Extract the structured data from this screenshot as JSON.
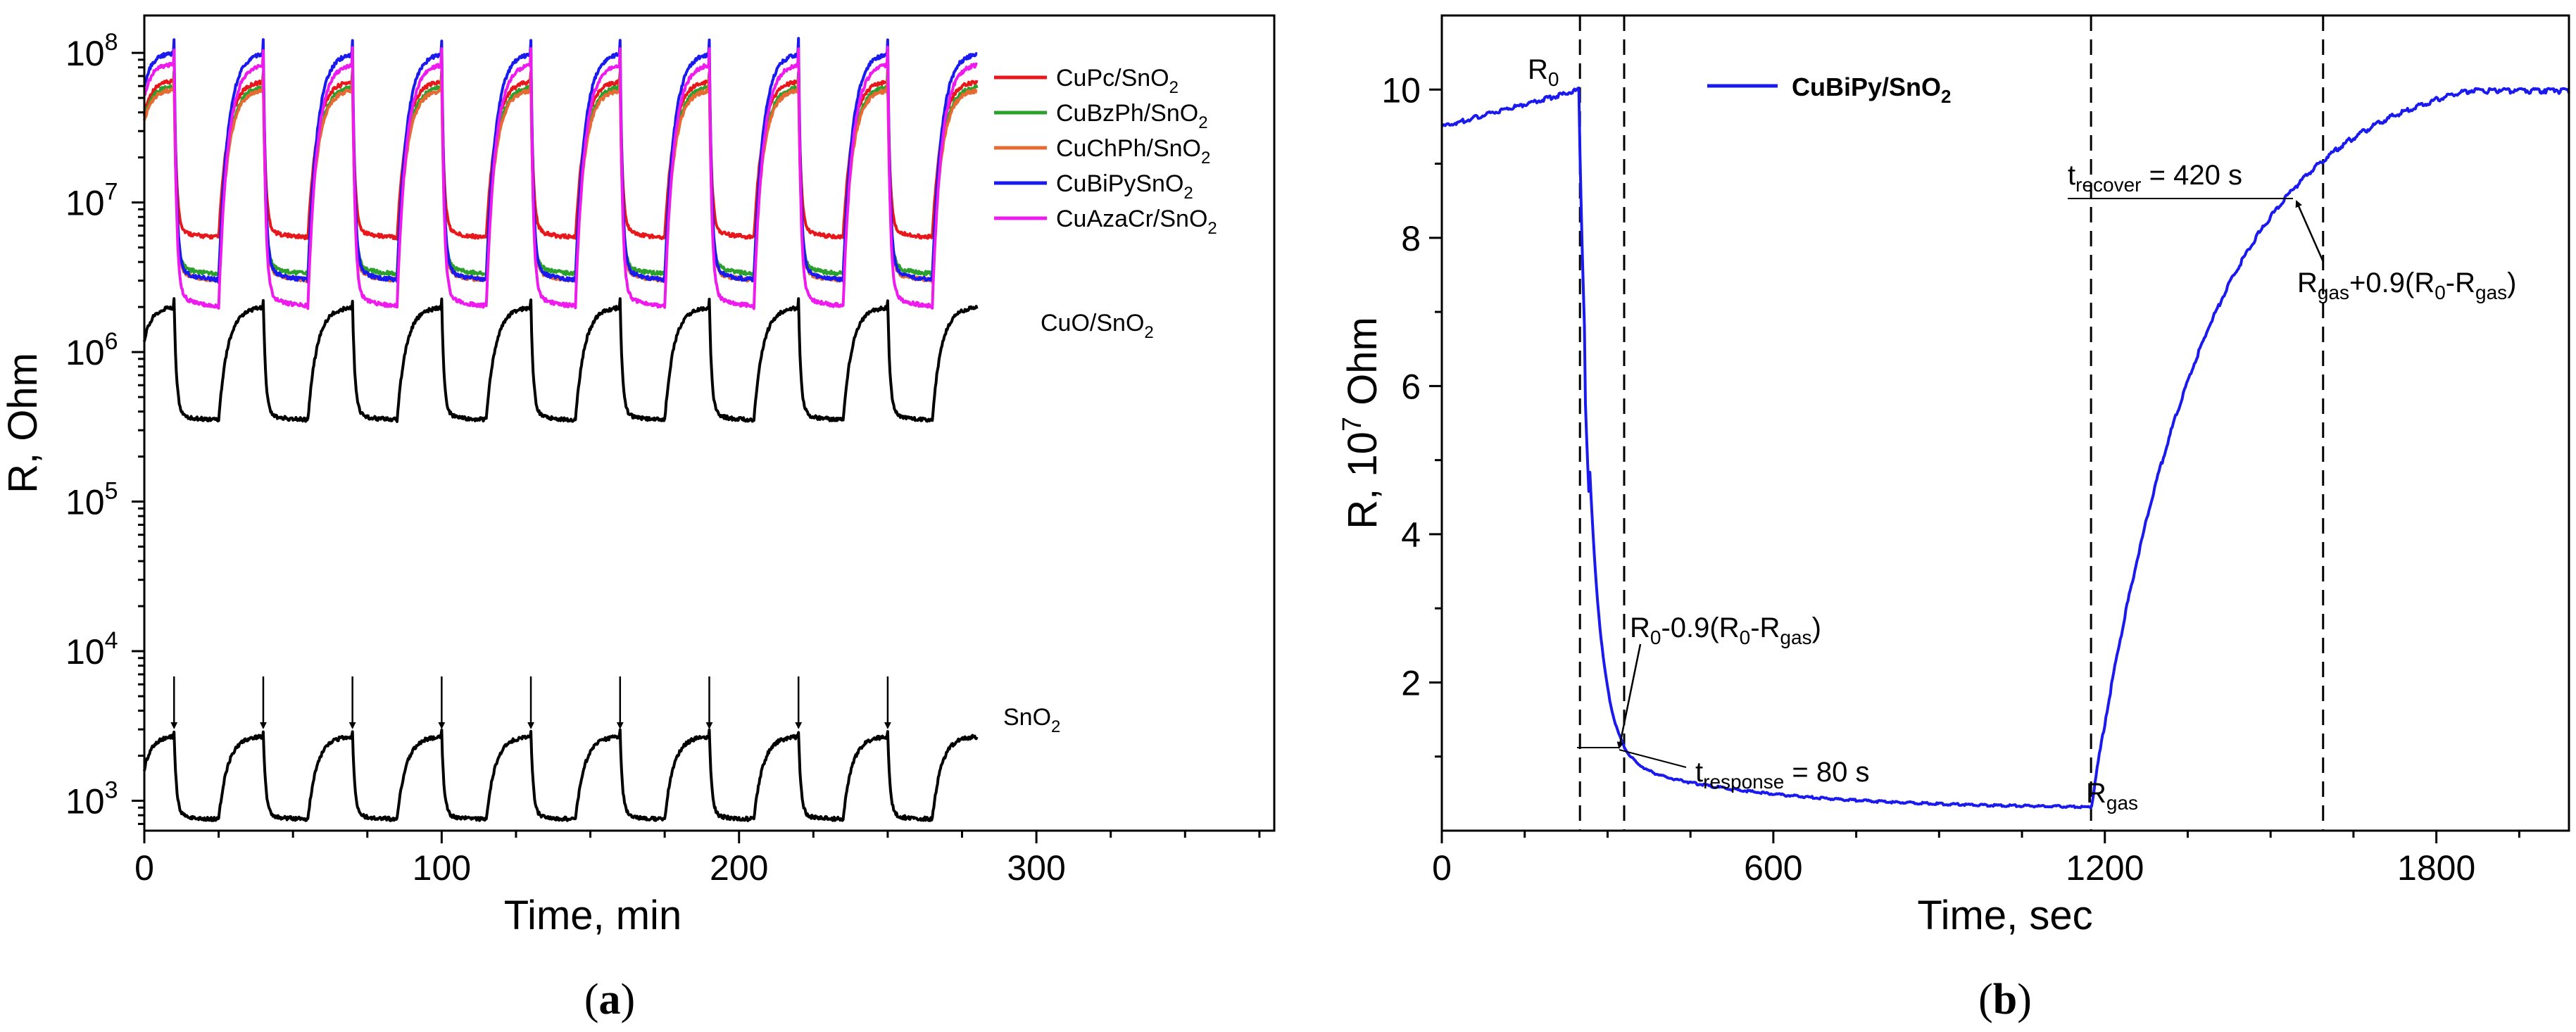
{
  "chart_data": [
    {
      "panel": "a",
      "type": "line",
      "title": "",
      "panel_label": {
        "open": "(",
        "letter": "a",
        "close": ")"
      },
      "xlabel": "Time, min",
      "ylabel": "R, Ohm",
      "xlim": [
        0,
        380
      ],
      "ylim_log10": [
        2.8,
        8.25
      ],
      "yscale": "log",
      "x_ticks": [
        0,
        100,
        200,
        300
      ],
      "x_tick_labels": [
        "0",
        "100",
        "200",
        "300"
      ],
      "y_ticks_log10": [
        3,
        4,
        5,
        6,
        7,
        8
      ],
      "y_tick_labels": [
        {
          "base": "10",
          "exp": "3"
        },
        {
          "base": "10",
          "exp": "4"
        },
        {
          "base": "10",
          "exp": "5"
        },
        {
          "base": "10",
          "exp": "6"
        },
        {
          "base": "10",
          "exp": "7"
        },
        {
          "base": "10",
          "exp": "8"
        }
      ],
      "cycles": {
        "count": 9,
        "first_gas_on_min": 10,
        "gas_on_duration_min": 15,
        "period_min": 30,
        "end_min": 280
      },
      "series": [
        {
          "name": "CuPc/SnO2",
          "label_main": "CuPc/SnO",
          "label_sub": "2",
          "color": "#e8171b",
          "r_air": 65000000.0,
          "r_gas": 5800000.0
        },
        {
          "name": "CuBzPh/SnO2",
          "label_main": "CuBzPh/SnO",
          "label_sub": "2",
          "color": "#2ca02c",
          "r_air": 60000000.0,
          "r_gas": 3300000.0
        },
        {
          "name": "CuChPh/SnO2",
          "label_main": "CuChPh/SnO",
          "label_sub": "2",
          "color": "#e86a33",
          "r_air": 57000000.0,
          "r_gas": 3000000.0
        },
        {
          "name": "CuBiPySnO2",
          "label_main": "CuBiPySnO",
          "label_sub": "2",
          "color": "#1a1aee",
          "r_air": 100000000.0,
          "r_gas": 3000000.0
        },
        {
          "name": "CuAzaCr/SnO2",
          "label_main": "CuAzaCr/SnO",
          "label_sub": "2",
          "color": "#ee1aee",
          "r_air": 85000000.0,
          "r_gas": 2000000.0
        },
        {
          "name": "CuO/SnO2",
          "label_main": "CuO/SnO",
          "label_sub": "2",
          "color": "#000000",
          "r_air": 2000000.0,
          "r_gas": 350000.0
        },
        {
          "name": "SnO2",
          "label_main": "SnO",
          "label_sub": "2",
          "color": "#000000",
          "r_air": 2700,
          "r_gas": 750
        }
      ],
      "arrow_times_min": [
        10,
        40,
        70,
        100,
        130,
        160,
        190,
        220,
        250
      ]
    },
    {
      "panel": "b",
      "type": "line",
      "title": "",
      "panel_label": {
        "open": "(",
        "letter": "b",
        "close": ")"
      },
      "xlabel": "Time, sec",
      "ylabel": {
        "main": "R, 10",
        "exp": "7",
        "unit": " Ohm"
      },
      "xlim": [
        0,
        2040
      ],
      "ylim": [
        0,
        11
      ],
      "x_ticks": [
        0,
        600,
        1200,
        1800
      ],
      "x_tick_labels": [
        "0",
        "600",
        "1200",
        "1800"
      ],
      "y_ticks": [
        2,
        4,
        6,
        8,
        10
      ],
      "y_tick_labels": [
        "2",
        "4",
        "6",
        "8",
        "10"
      ],
      "series": [
        {
          "name": "CuBiPy/SnO2",
          "label_main": "CuBiPy/SnO",
          "label_sub": "2",
          "color": "#1a1aee"
        }
      ],
      "points": {
        "baseline_start": [
          0,
          9.5
        ],
        "gas_on": [
          250,
          10.0
        ],
        "response_90": [
          330,
          1.15
        ],
        "gas_off": [
          1175,
          0.3
        ],
        "recover_90": [
          1595,
          8.55
        ],
        "end": [
          2040,
          10.0
        ]
      },
      "vlines_sec": [
        250,
        330,
        1175,
        1595
      ],
      "annotations": {
        "r0": {
          "main": "R",
          "sub": "0"
        },
        "rgas": {
          "main": "R",
          "sub": "gas"
        },
        "t_response": {
          "pre": "t",
          "sub": "response",
          "post": " = 80 s"
        },
        "t_recover": {
          "pre": "t",
          "sub": "recover",
          "post": " = 420 s"
        },
        "resp_formula": {
          "p1": "R",
          "s1": "0",
          "p2": "-0.9(R",
          "s2": "0",
          "p3": "-R",
          "s3": "gas",
          "p4": ")"
        },
        "rec_formula": {
          "p1": "R",
          "s1": "gas",
          "p2": "+0.9(R",
          "s2": "0",
          "p3": "-R",
          "s3": "gas",
          "p4": ")"
        }
      }
    }
  ]
}
